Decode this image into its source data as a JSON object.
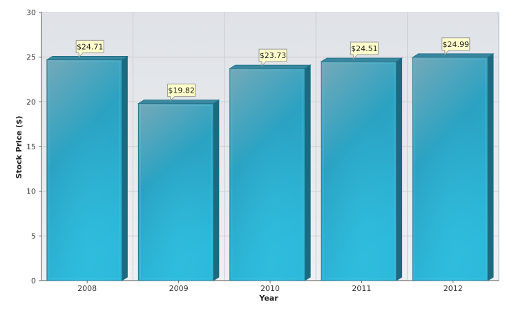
{
  "chart_data": {
    "type": "bar",
    "categories": [
      "2008",
      "2009",
      "2010",
      "2011",
      "2012"
    ],
    "values": [
      24.71,
      19.82,
      23.73,
      24.51,
      24.99
    ],
    "data_labels": [
      "$24.71",
      "$19.82",
      "$23.73",
      "$24.51",
      "$24.99"
    ],
    "title": "",
    "xlabel": "Year",
    "ylabel": "Stock Price ($)",
    "ylim": [
      0,
      30
    ],
    "yticks": [
      0,
      5,
      10,
      15,
      20,
      25,
      30
    ],
    "grid": true,
    "legend": "none",
    "colors": {
      "bar_top": "#6aa3b2",
      "bar_mid": "#2b9fbf",
      "bar_bottom": "#2ab6d8",
      "bar_outline": "#1f6f85",
      "bar_side": "#1b6a80",
      "bar_cap": "#3a87a0",
      "plot_bg": "#e3e6ea",
      "grid": "#c9ccd0",
      "label_bg": "#ffffcc",
      "label_border": "#999999"
    }
  }
}
